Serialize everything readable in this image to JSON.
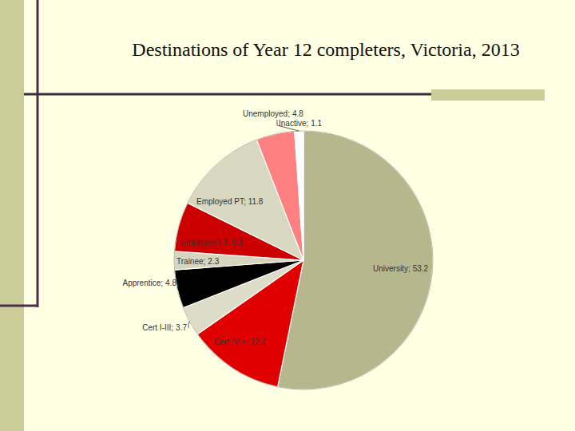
{
  "chart_data": {
    "type": "pie",
    "title": "Destinations of Year 12 completers, Victoria, 2013",
    "categories": [
      "University;",
      "Cert IV +;",
      "Cert I-III;",
      "Apprentice;",
      "Trainee;",
      "Employed FT;",
      "Employed PT;",
      "Unemployed;",
      "Inactive;"
    ],
    "values": [
      53.2,
      12.1,
      3.7,
      4.8,
      2.3,
      6.2,
      11.8,
      4.8,
      1.1
    ],
    "colors": [
      "#B7B78E",
      "#E00000",
      "#DCDCC8",
      "#000000",
      "#D6D6BE",
      "#CC0000",
      "#D8D8C0",
      "#FF8080",
      "#FFFFFF"
    ],
    "data_labels": true
  }
}
